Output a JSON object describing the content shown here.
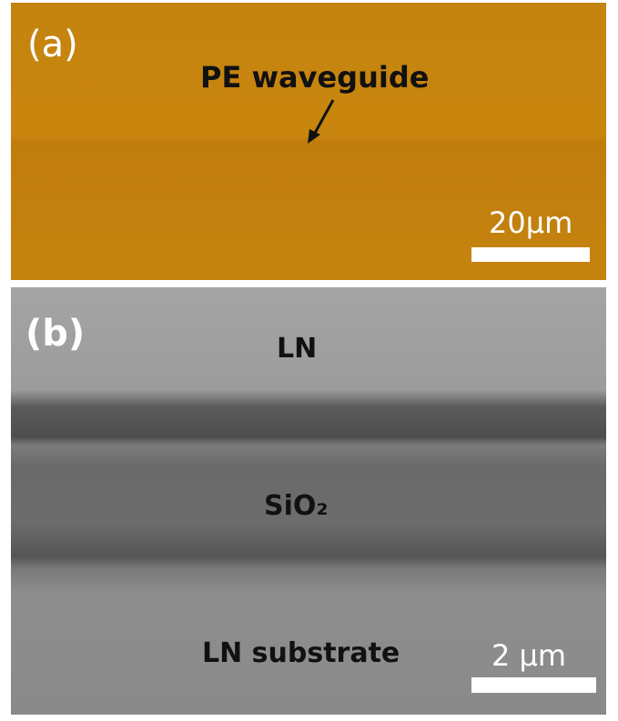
{
  "panels": [
    {
      "label": "(a)",
      "annotation": "PE waveguide",
      "scale_bar": "20μm"
    },
    {
      "label": "(b)",
      "layers": [
        "LN",
        "SiO₂",
        "LN substrate"
      ],
      "scale_bar": "2 μm"
    }
  ]
}
